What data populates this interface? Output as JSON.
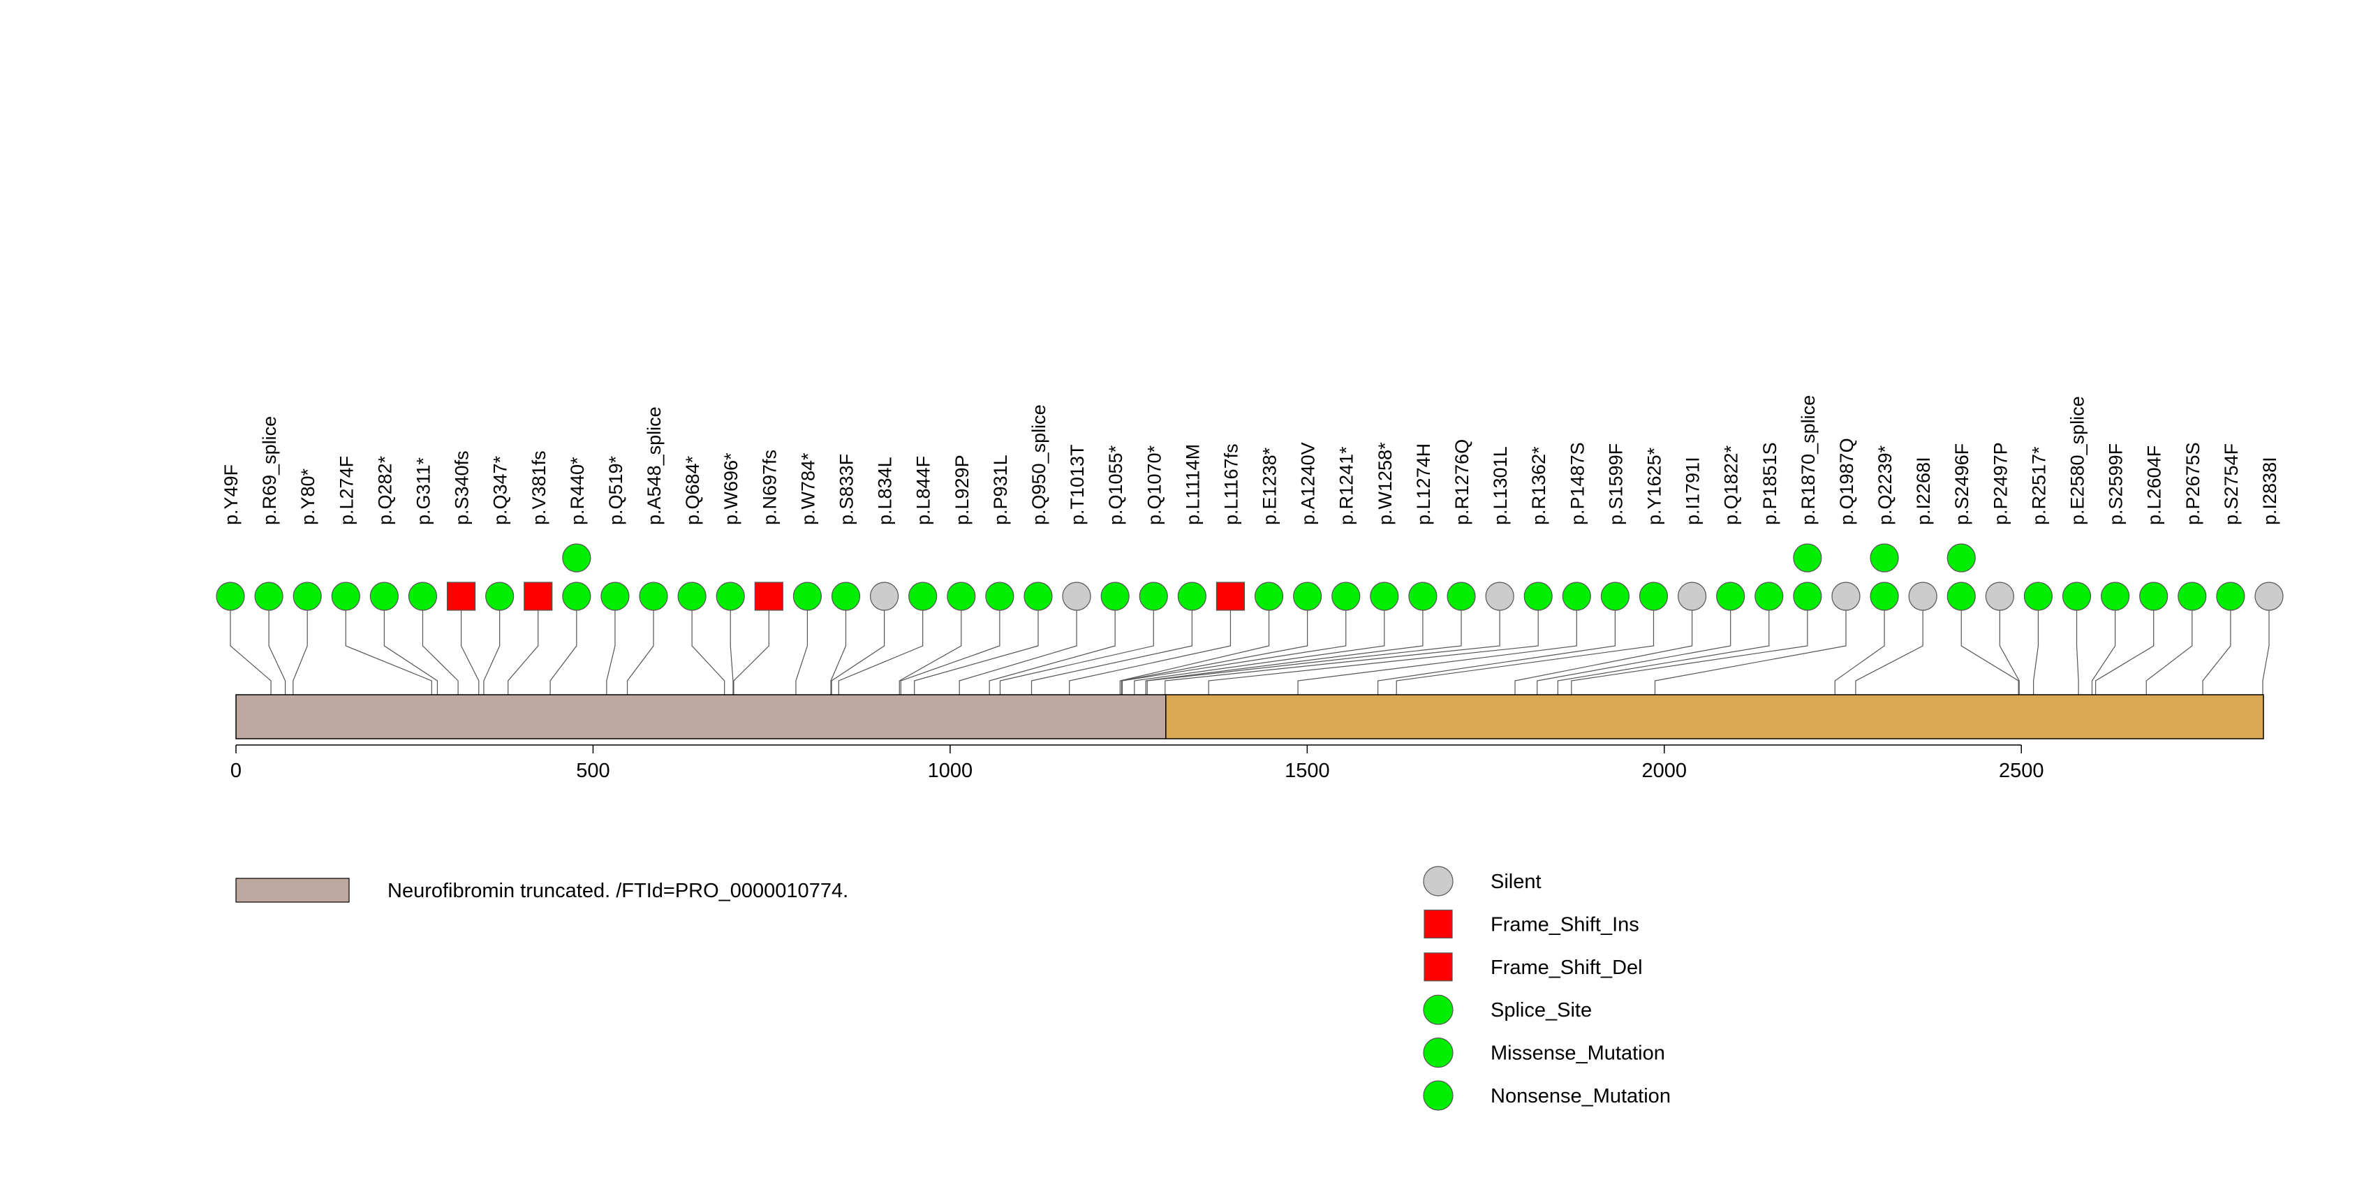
{
  "chart_data": {
    "type": "lollipop",
    "protein_length": 2839,
    "axis": {
      "xlim": [
        0,
        2839
      ],
      "ticks": [
        0,
        500,
        1000,
        1500,
        2000,
        2500
      ],
      "tick_labels": [
        "0",
        "500",
        "1000",
        "1500",
        "2000",
        "2500"
      ]
    },
    "domains": [
      {
        "start": 1,
        "end": 1302,
        "color": "#bfa8a0",
        "label": "Neurofibromin truncated. /FTId=PRO_0000010774."
      },
      {
        "start": 1303,
        "end": 2839,
        "color": "#d8a852",
        "label": ""
      }
    ],
    "mutation_colors": {
      "Silent": "#cccccc",
      "Frame_Shift_Ins": "#ff0000",
      "Frame_Shift_Del": "#ff0000",
      "Splice_Site": "#00ee00",
      "Missense_Mutation": "#00ee00",
      "Nonsense_Mutation": "#00ee00"
    },
    "mutation_shapes": {
      "Silent": "circle",
      "Frame_Shift_Ins": "square",
      "Frame_Shift_Del": "square",
      "Splice_Site": "circle",
      "Missense_Mutation": "circle",
      "Nonsense_Mutation": "circle"
    },
    "mutations": [
      {
        "label": "p.Y49F",
        "pos": 49,
        "type": "Missense_Mutation",
        "count": 1
      },
      {
        "label": "p.R69_splice",
        "pos": 69,
        "type": "Splice_Site",
        "count": 1
      },
      {
        "label": "p.Y80*",
        "pos": 80,
        "type": "Nonsense_Mutation",
        "count": 1
      },
      {
        "label": "p.L274F",
        "pos": 274,
        "type": "Missense_Mutation",
        "count": 1
      },
      {
        "label": "p.Q282*",
        "pos": 282,
        "type": "Nonsense_Mutation",
        "count": 1
      },
      {
        "label": "p.G311*",
        "pos": 311,
        "type": "Nonsense_Mutation",
        "count": 1
      },
      {
        "label": "p.S340fs",
        "pos": 340,
        "type": "Frame_Shift_Del",
        "count": 1
      },
      {
        "label": "p.Q347*",
        "pos": 347,
        "type": "Nonsense_Mutation",
        "count": 1
      },
      {
        "label": "p.V381fs",
        "pos": 381,
        "type": "Frame_Shift_Ins",
        "count": 1
      },
      {
        "label": "p.R440*",
        "pos": 440,
        "type": "Nonsense_Mutation",
        "count": 2
      },
      {
        "label": "p.Q519*",
        "pos": 519,
        "type": "Nonsense_Mutation",
        "count": 1
      },
      {
        "label": "p.A548_splice",
        "pos": 548,
        "type": "Splice_Site",
        "count": 1
      },
      {
        "label": "p.Q684*",
        "pos": 684,
        "type": "Nonsense_Mutation",
        "count": 1
      },
      {
        "label": "p.W696*",
        "pos": 696,
        "type": "Nonsense_Mutation",
        "count": 1
      },
      {
        "label": "p.N697fs",
        "pos": 697,
        "type": "Frame_Shift_Del",
        "count": 1
      },
      {
        "label": "p.W784*",
        "pos": 784,
        "type": "Nonsense_Mutation",
        "count": 1
      },
      {
        "label": "p.S833F",
        "pos": 833,
        "type": "Missense_Mutation",
        "count": 1
      },
      {
        "label": "p.L834L",
        "pos": 834,
        "type": "Silent",
        "count": 1
      },
      {
        "label": "p.L844F",
        "pos": 844,
        "type": "Missense_Mutation",
        "count": 1
      },
      {
        "label": "p.L929P",
        "pos": 929,
        "type": "Missense_Mutation",
        "count": 1
      },
      {
        "label": "p.P931L",
        "pos": 931,
        "type": "Missense_Mutation",
        "count": 1
      },
      {
        "label": "p.Q950_splice",
        "pos": 950,
        "type": "Splice_Site",
        "count": 1
      },
      {
        "label": "p.T1013T",
        "pos": 1013,
        "type": "Silent",
        "count": 1
      },
      {
        "label": "p.Q1055*",
        "pos": 1055,
        "type": "Nonsense_Mutation",
        "count": 1
      },
      {
        "label": "p.Q1070*",
        "pos": 1070,
        "type": "Nonsense_Mutation",
        "count": 1
      },
      {
        "label": "p.L1114M",
        "pos": 1114,
        "type": "Missense_Mutation",
        "count": 1
      },
      {
        "label": "p.L1167fs",
        "pos": 1167,
        "type": "Frame_Shift_Del",
        "count": 1
      },
      {
        "label": "p.E1238*",
        "pos": 1238,
        "type": "Nonsense_Mutation",
        "count": 1
      },
      {
        "label": "p.A1240V",
        "pos": 1240,
        "type": "Missense_Mutation",
        "count": 1
      },
      {
        "label": "p.R1241*",
        "pos": 1241,
        "type": "Nonsense_Mutation",
        "count": 1
      },
      {
        "label": "p.W1258*",
        "pos": 1258,
        "type": "Nonsense_Mutation",
        "count": 1
      },
      {
        "label": "p.L1274H",
        "pos": 1274,
        "type": "Missense_Mutation",
        "count": 1
      },
      {
        "label": "p.R1276Q",
        "pos": 1276,
        "type": "Missense_Mutation",
        "count": 1
      },
      {
        "label": "p.L1301L",
        "pos": 1301,
        "type": "Silent",
        "count": 1
      },
      {
        "label": "p.R1362*",
        "pos": 1362,
        "type": "Nonsense_Mutation",
        "count": 1
      },
      {
        "label": "p.P1487S",
        "pos": 1487,
        "type": "Missense_Mutation",
        "count": 1
      },
      {
        "label": "p.S1599F",
        "pos": 1599,
        "type": "Missense_Mutation",
        "count": 1
      },
      {
        "label": "p.Y1625*",
        "pos": 1625,
        "type": "Nonsense_Mutation",
        "count": 1
      },
      {
        "label": "p.I1791I",
        "pos": 1791,
        "type": "Silent",
        "count": 1
      },
      {
        "label": "p.Q1822*",
        "pos": 1822,
        "type": "Nonsense_Mutation",
        "count": 1
      },
      {
        "label": "p.P1851S",
        "pos": 1851,
        "type": "Missense_Mutation",
        "count": 1
      },
      {
        "label": "p.R1870_splice",
        "pos": 1870,
        "type": "Splice_Site",
        "count": 2
      },
      {
        "label": "p.Q1987Q",
        "pos": 1987,
        "type": "Silent",
        "count": 1
      },
      {
        "label": "p.Q2239*",
        "pos": 2239,
        "type": "Nonsense_Mutation",
        "count": 2
      },
      {
        "label": "p.I2268I",
        "pos": 2268,
        "type": "Silent",
        "count": 1
      },
      {
        "label": "p.S2496F",
        "pos": 2496,
        "type": "Missense_Mutation",
        "count": 2
      },
      {
        "label": "p.P2497P",
        "pos": 2497,
        "type": "Silent",
        "count": 1
      },
      {
        "label": "p.R2517*",
        "pos": 2517,
        "type": "Nonsense_Mutation",
        "count": 1
      },
      {
        "label": "p.E2580_splice",
        "pos": 2580,
        "type": "Splice_Site",
        "count": 1
      },
      {
        "label": "p.S2599F",
        "pos": 2599,
        "type": "Missense_Mutation",
        "count": 1
      },
      {
        "label": "p.L2604F",
        "pos": 2604,
        "type": "Missense_Mutation",
        "count": 1
      },
      {
        "label": "p.P2675S",
        "pos": 2675,
        "type": "Missense_Mutation",
        "count": 1
      },
      {
        "label": "p.S2754F",
        "pos": 2754,
        "type": "Missense_Mutation",
        "count": 1
      },
      {
        "label": "p.I2838I",
        "pos": 2838,
        "type": "Silent",
        "count": 1
      }
    ],
    "legend": {
      "domains": [
        {
          "label": "Neurofibromin truncated. /FTId=PRO_0000010774.",
          "color": "#bfa8a0"
        }
      ],
      "mutation_types": [
        {
          "label": "Silent",
          "shape": "circle",
          "color": "#cccccc"
        },
        {
          "label": "Frame_Shift_Ins",
          "shape": "square",
          "color": "#ff0000"
        },
        {
          "label": "Frame_Shift_Del",
          "shape": "square",
          "color": "#ff0000"
        },
        {
          "label": "Splice_Site",
          "shape": "circle",
          "color": "#00ee00"
        },
        {
          "label": "Missense_Mutation",
          "shape": "circle",
          "color": "#00ee00"
        },
        {
          "label": "Nonsense_Mutation",
          "shape": "circle",
          "color": "#00ee00"
        }
      ]
    }
  }
}
